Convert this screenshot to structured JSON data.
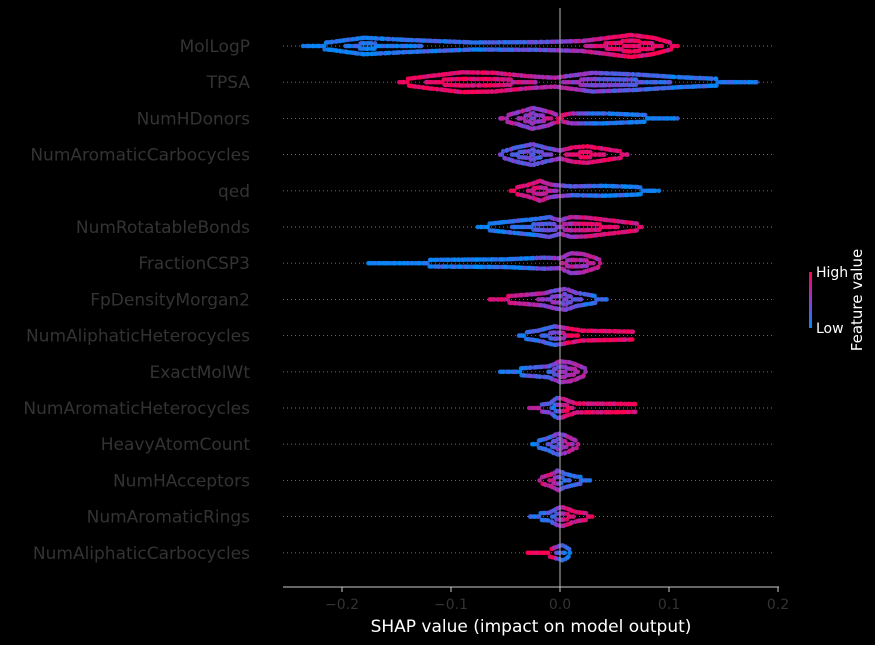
{
  "chart_data": {
    "type": "scatter",
    "subtype": "shap-beeswarm",
    "title": "",
    "xlabel": "SHAP value (impact on model output)",
    "xlim": [
      -0.255,
      0.2
    ],
    "xticks": [
      -0.2,
      -0.1,
      0.0,
      0.1,
      0.2
    ],
    "xtick_labels": [
      "−0.2",
      "−0.1",
      "0.0",
      "0.1",
      "0.2"
    ],
    "ylabel": "",
    "features": [
      {
        "name": "MolLogP",
        "min": -0.235,
        "max": 0.108,
        "shape": [
          [
            -0.235,
            0.15
          ],
          [
            -0.21,
            0.35
          ],
          [
            -0.18,
            0.75
          ],
          [
            -0.14,
            0.55
          ],
          [
            -0.08,
            0.32
          ],
          [
            -0.02,
            0.35
          ],
          [
            0.02,
            0.45
          ],
          [
            0.045,
            0.75
          ],
          [
            0.065,
            1.0
          ],
          [
            0.085,
            0.75
          ],
          [
            0.1,
            0.35
          ],
          [
            0.108,
            0.15
          ]
        ],
        "color": [
          [
            -0.235,
            0.05
          ],
          [
            -0.05,
            0.2
          ],
          [
            0.0,
            0.45
          ],
          [
            0.03,
            0.75
          ],
          [
            0.06,
            0.95
          ],
          [
            0.108,
            0.9
          ]
        ]
      },
      {
        "name": "TPSA",
        "min": -0.148,
        "max": 0.18,
        "shape": [
          [
            -0.148,
            0.2
          ],
          [
            -0.12,
            0.55
          ],
          [
            -0.09,
            0.9
          ],
          [
            -0.06,
            0.85
          ],
          [
            -0.03,
            0.55
          ],
          [
            -0.005,
            0.4
          ],
          [
            0.03,
            0.85
          ],
          [
            0.07,
            0.7
          ],
          [
            0.11,
            0.45
          ],
          [
            0.15,
            0.28
          ],
          [
            0.18,
            0.15
          ]
        ],
        "color": [
          [
            -0.148,
            0.95
          ],
          [
            -0.07,
            0.9
          ],
          [
            -0.01,
            0.65
          ],
          [
            0.03,
            0.45
          ],
          [
            0.1,
            0.15
          ],
          [
            0.18,
            0.05
          ]
        ]
      },
      {
        "name": "NumHDonors",
        "min": -0.055,
        "max": 0.108,
        "shape": [
          [
            -0.055,
            0.15
          ],
          [
            -0.04,
            0.5
          ],
          [
            -0.025,
            0.95
          ],
          [
            -0.012,
            0.65
          ],
          [
            0.0,
            0.25
          ],
          [
            0.01,
            0.45
          ],
          [
            0.04,
            0.45
          ],
          [
            0.08,
            0.3
          ],
          [
            0.108,
            0.15
          ]
        ],
        "color": [
          [
            -0.055,
            0.7
          ],
          [
            -0.02,
            0.5
          ],
          [
            0.005,
            0.85
          ],
          [
            0.03,
            0.1
          ],
          [
            0.108,
            0.05
          ]
        ]
      },
      {
        "name": "NumAromaticCarbocycles",
        "min": -0.055,
        "max": 0.062,
        "shape": [
          [
            -0.055,
            0.2
          ],
          [
            -0.04,
            0.65
          ],
          [
            -0.025,
            0.95
          ],
          [
            -0.012,
            0.6
          ],
          [
            0.0,
            0.35
          ],
          [
            0.012,
            0.65
          ],
          [
            0.025,
            0.75
          ],
          [
            0.045,
            0.45
          ],
          [
            0.062,
            0.2
          ]
        ],
        "color": [
          [
            -0.055,
            0.35
          ],
          [
            -0.01,
            0.35
          ],
          [
            0.01,
            0.85
          ],
          [
            0.062,
            0.9
          ]
        ]
      },
      {
        "name": "qed",
        "min": -0.045,
        "max": 0.09,
        "shape": [
          [
            -0.045,
            0.2
          ],
          [
            -0.03,
            0.5
          ],
          [
            -0.018,
            0.9
          ],
          [
            -0.008,
            0.55
          ],
          [
            0.01,
            0.4
          ],
          [
            0.04,
            0.45
          ],
          [
            0.07,
            0.35
          ],
          [
            0.09,
            0.15
          ]
        ],
        "color": [
          [
            -0.045,
            0.9
          ],
          [
            -0.015,
            0.75
          ],
          [
            0.01,
            0.3
          ],
          [
            0.04,
            0.1
          ],
          [
            0.09,
            0.05
          ]
        ]
      },
      {
        "name": "NumRotatableBonds",
        "min": -0.075,
        "max": 0.076,
        "shape": [
          [
            -0.075,
            0.2
          ],
          [
            -0.05,
            0.45
          ],
          [
            -0.02,
            0.75
          ],
          [
            -0.01,
            0.9
          ],
          [
            0.0,
            0.6
          ],
          [
            0.01,
            0.9
          ],
          [
            0.025,
            0.85
          ],
          [
            0.05,
            0.55
          ],
          [
            0.076,
            0.25
          ]
        ],
        "color": [
          [
            -0.075,
            0.05
          ],
          [
            -0.02,
            0.2
          ],
          [
            0.005,
            0.6
          ],
          [
            0.03,
            0.85
          ],
          [
            0.076,
            0.9
          ]
        ]
      },
      {
        "name": "FractionCSP3",
        "min": -0.175,
        "max": 0.038,
        "shape": [
          [
            -0.175,
            0.15
          ],
          [
            -0.12,
            0.3
          ],
          [
            -0.05,
            0.35
          ],
          [
            -0.015,
            0.5
          ],
          [
            0.0,
            0.45
          ],
          [
            0.01,
            0.9
          ],
          [
            0.02,
            0.85
          ],
          [
            0.03,
            0.55
          ],
          [
            0.038,
            0.25
          ]
        ],
        "color": [
          [
            -0.175,
            0.05
          ],
          [
            -0.03,
            0.1
          ],
          [
            0.0,
            0.6
          ],
          [
            0.038,
            0.65
          ]
        ]
      },
      {
        "name": "FpDensityMorgan2",
        "min": -0.065,
        "max": 0.043,
        "shape": [
          [
            -0.065,
            0.2
          ],
          [
            -0.04,
            0.35
          ],
          [
            -0.015,
            0.55
          ],
          [
            -0.005,
            0.8
          ],
          [
            0.005,
            0.95
          ],
          [
            0.015,
            0.6
          ],
          [
            0.03,
            0.35
          ],
          [
            0.043,
            0.15
          ]
        ],
        "color": [
          [
            -0.065,
            0.95
          ],
          [
            -0.02,
            0.6
          ],
          [
            0.005,
            0.45
          ],
          [
            0.043,
            0.1
          ]
        ]
      },
      {
        "name": "NumAliphaticHeterocycles",
        "min": -0.038,
        "max": 0.068,
        "shape": [
          [
            -0.038,
            0.2
          ],
          [
            -0.02,
            0.45
          ],
          [
            -0.005,
            0.85
          ],
          [
            0.005,
            0.7
          ],
          [
            0.02,
            0.45
          ],
          [
            0.045,
            0.4
          ],
          [
            0.068,
            0.35
          ]
        ],
        "color": [
          [
            -0.038,
            0.1
          ],
          [
            -0.005,
            0.3
          ],
          [
            0.01,
            0.9
          ],
          [
            0.068,
            0.95
          ]
        ]
      },
      {
        "name": "ExactMolWt",
        "min": -0.055,
        "max": 0.025,
        "shape": [
          [
            -0.055,
            0.15
          ],
          [
            -0.03,
            0.35
          ],
          [
            -0.01,
            0.5
          ],
          [
            0.0,
            0.95
          ],
          [
            0.01,
            0.85
          ],
          [
            0.02,
            0.45
          ],
          [
            0.025,
            0.2
          ]
        ],
        "color": [
          [
            -0.055,
            0.1
          ],
          [
            -0.01,
            0.3
          ],
          [
            0.005,
            0.65
          ],
          [
            0.025,
            0.6
          ]
        ]
      },
      {
        "name": "NumAromaticHeterocycles",
        "min": -0.028,
        "max": 0.07,
        "shape": [
          [
            -0.028,
            0.2
          ],
          [
            -0.01,
            0.4
          ],
          [
            -0.003,
            0.9
          ],
          [
            0.002,
            0.85
          ],
          [
            0.015,
            0.4
          ],
          [
            0.05,
            0.38
          ],
          [
            0.07,
            0.35
          ]
        ],
        "color": [
          [
            -0.028,
            0.75
          ],
          [
            -0.005,
            0.15
          ],
          [
            0.005,
            0.9
          ],
          [
            0.07,
            0.95
          ]
        ]
      },
      {
        "name": "HeavyAtomCount",
        "min": -0.025,
        "max": 0.018,
        "shape": [
          [
            -0.025,
            0.2
          ],
          [
            -0.012,
            0.5
          ],
          [
            -0.002,
            0.95
          ],
          [
            0.005,
            0.8
          ],
          [
            0.012,
            0.45
          ],
          [
            0.018,
            0.2
          ]
        ],
        "color": [
          [
            -0.025,
            0.1
          ],
          [
            -0.005,
            0.3
          ],
          [
            0.005,
            0.55
          ],
          [
            0.018,
            0.8
          ]
        ]
      },
      {
        "name": "NumHAcceptors",
        "min": -0.018,
        "max": 0.028,
        "shape": [
          [
            -0.018,
            0.25
          ],
          [
            -0.008,
            0.55
          ],
          [
            -0.002,
            0.9
          ],
          [
            0.005,
            0.6
          ],
          [
            0.015,
            0.35
          ],
          [
            0.028,
            0.2
          ]
        ],
        "color": [
          [
            -0.018,
            0.85
          ],
          [
            -0.005,
            0.7
          ],
          [
            0.003,
            0.25
          ],
          [
            0.028,
            0.05
          ]
        ]
      },
      {
        "name": "NumAromaticRings",
        "min": -0.028,
        "max": 0.03,
        "shape": [
          [
            -0.028,
            0.25
          ],
          [
            -0.01,
            0.35
          ],
          [
            -0.002,
            0.8
          ],
          [
            0.003,
            0.85
          ],
          [
            0.015,
            0.4
          ],
          [
            0.03,
            0.25
          ]
        ],
        "color": [
          [
            -0.028,
            0.1
          ],
          [
            -0.005,
            0.3
          ],
          [
            0.005,
            0.8
          ],
          [
            0.03,
            0.9
          ]
        ]
      },
      {
        "name": "NumAliphaticCarbocycles",
        "min": -0.03,
        "max": 0.01,
        "shape": [
          [
            -0.03,
            0.25
          ],
          [
            -0.01,
            0.3
          ],
          [
            -0.002,
            0.55
          ],
          [
            0.002,
            0.7
          ],
          [
            0.006,
            0.45
          ],
          [
            0.01,
            0.2
          ]
        ],
        "color": [
          [
            -0.03,
            0.95
          ],
          [
            -0.006,
            0.9
          ],
          [
            -0.001,
            0.3
          ],
          [
            0.01,
            0.05
          ]
        ]
      }
    ],
    "colorbar": {
      "label": "Feature value",
      "high_label": "High",
      "low_label": "Low",
      "high_color": "#ff0052",
      "low_color": "#008bfb"
    },
    "background": "#000000",
    "zero_line": true
  }
}
